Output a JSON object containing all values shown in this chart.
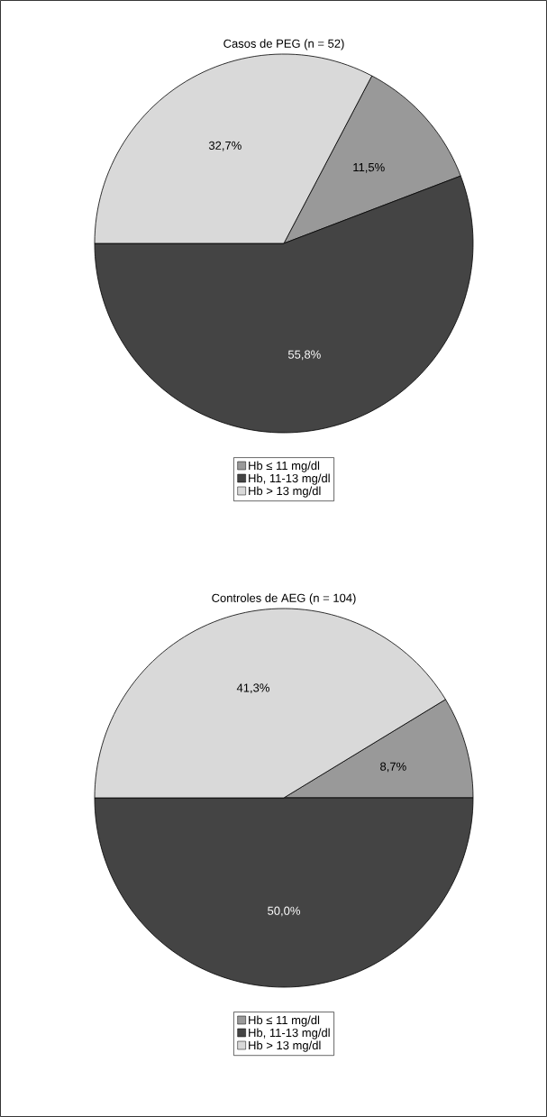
{
  "chart_data": [
    {
      "type": "pie",
      "title": "Casos de PEG (n = 52)",
      "categories": [
        "Hb ≤ 11 mg/dl",
        "Hb, 11-13 mg/dl",
        "Hb > 13 mg/dl"
      ],
      "values": [
        11.5,
        55.8,
        32.7
      ],
      "colors": [
        "#999999",
        "#444444",
        "#d9d9d9"
      ],
      "value_labels": [
        "11,5%",
        "55,8%",
        "32,7%"
      ],
      "legend": "bottom"
    },
    {
      "type": "pie",
      "title": "Controles de AEG (n = 104)",
      "categories": [
        "Hb ≤ 11 mg/dl",
        "Hb, 11-13 mg/dl",
        "Hb > 13 mg/dl"
      ],
      "values": [
        8.7,
        50.0,
        41.3
      ],
      "colors": [
        "#999999",
        "#444444",
        "#d9d9d9"
      ],
      "value_labels": [
        "8,7%",
        "50,0%",
        "41,3%"
      ],
      "legend": "bottom"
    }
  ]
}
